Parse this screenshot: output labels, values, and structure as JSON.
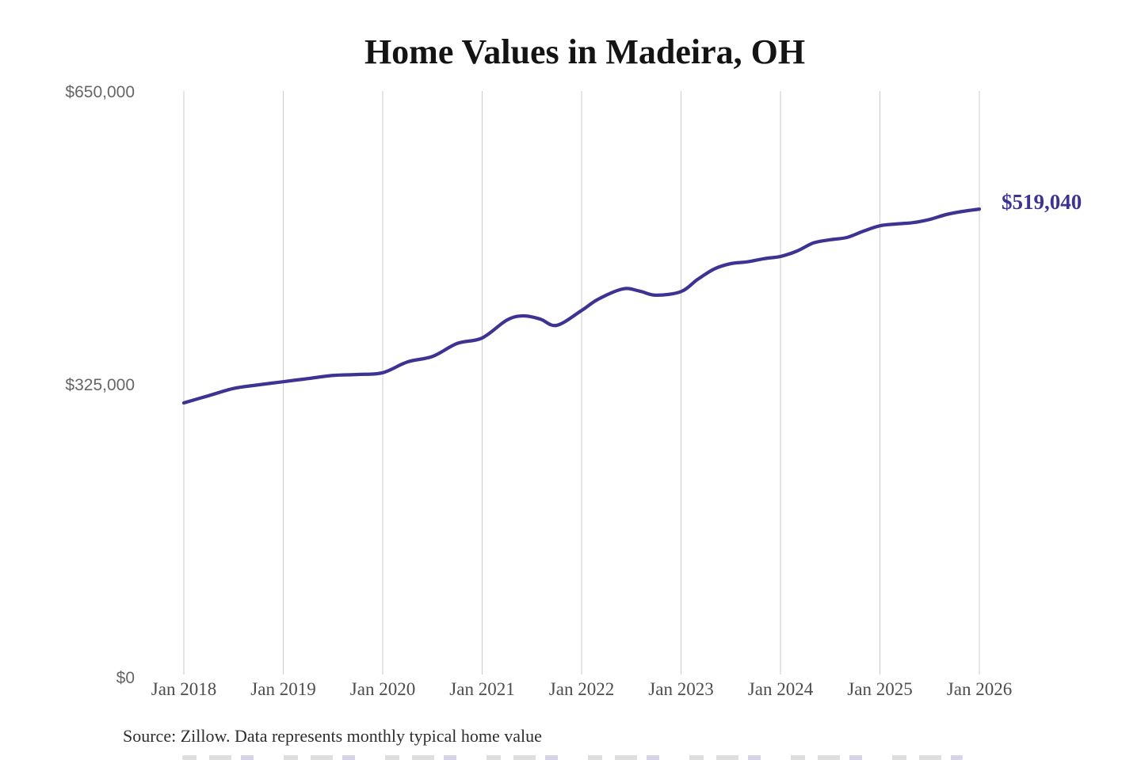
{
  "title": "Home Values in Madeira, OH",
  "source_note": "Source: Zillow. Data represents monthly typical home value",
  "colors": {
    "background": "#ffffff",
    "line": "#3d3393",
    "latest_label": "#3d3393",
    "grid": "#cbcbcb",
    "title_text": "#141414",
    "x_tick_text": "#4d4d4d",
    "y_tick_text": "#666666",
    "source_text": "#2e2e2e"
  },
  "chart_data": {
    "type": "line",
    "title": "Home Values in Madeira, OH",
    "xlabel": "",
    "ylabel": "",
    "unit": "USD",
    "ylim": [
      0,
      650000
    ],
    "grid": "vertical-only",
    "legend": "none",
    "x_ticks": [
      "Jan 2018",
      "Jan 2019",
      "Jan 2020",
      "Jan 2021",
      "Jan 2022",
      "Jan 2023",
      "Jan 2024",
      "Jan 2025",
      "Jan 2026"
    ],
    "y_ticks": [
      {
        "label": "$0",
        "value": 0
      },
      {
        "label": "$325,000",
        "value": 325000
      },
      {
        "label": "$650,000",
        "value": 650000
      }
    ],
    "end_annotation": {
      "text": "$519,040",
      "value": 519040
    },
    "series": [
      {
        "name": "Monthly typical home value",
        "points": [
          [
            "2018-01",
            304000
          ],
          [
            "2018-04",
            312000
          ],
          [
            "2018-07",
            320000
          ],
          [
            "2018-10",
            324000
          ],
          [
            "2019-01",
            327500
          ],
          [
            "2019-04",
            331000
          ],
          [
            "2019-07",
            334500
          ],
          [
            "2019-10",
            335500
          ],
          [
            "2020-01",
            337500
          ],
          [
            "2020-04",
            349500
          ],
          [
            "2020-07",
            355500
          ],
          [
            "2020-10",
            370000
          ],
          [
            "2021-01",
            376000
          ],
          [
            "2021-04",
            396000
          ],
          [
            "2021-06",
            400500
          ],
          [
            "2021-08",
            397000
          ],
          [
            "2021-10",
            390000
          ],
          [
            "2022-01",
            406500
          ],
          [
            "2022-03",
            419000
          ],
          [
            "2022-06",
            430500
          ],
          [
            "2022-08",
            428000
          ],
          [
            "2022-10",
            423500
          ],
          [
            "2023-01",
            427500
          ],
          [
            "2023-03",
            441000
          ],
          [
            "2023-05",
            452500
          ],
          [
            "2023-07",
            458500
          ],
          [
            "2023-09",
            460500
          ],
          [
            "2023-11",
            464000
          ],
          [
            "2024-01",
            466500
          ],
          [
            "2024-03",
            472500
          ],
          [
            "2024-05",
            481500
          ],
          [
            "2024-07",
            485000
          ],
          [
            "2024-09",
            487500
          ],
          [
            "2024-11",
            494500
          ],
          [
            "2025-01",
            500500
          ],
          [
            "2025-03",
            502500
          ],
          [
            "2025-05",
            504000
          ],
          [
            "2025-07",
            507500
          ],
          [
            "2025-09",
            513000
          ],
          [
            "2025-11",
            516500
          ],
          [
            "2026-01",
            519040
          ]
        ]
      }
    ]
  }
}
